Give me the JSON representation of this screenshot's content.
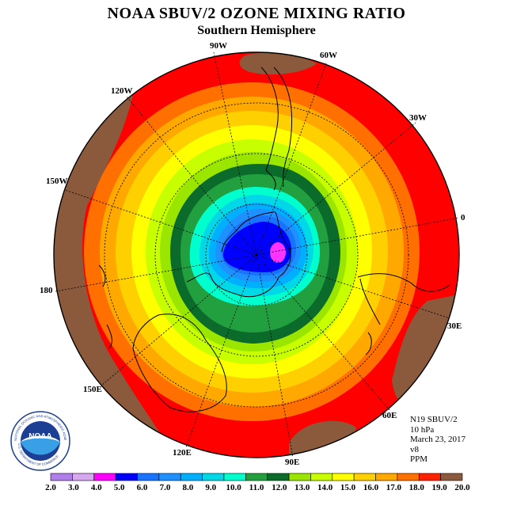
{
  "title": "NOAA SBUV/2 OZONE MIXING RATIO",
  "subtitle": "Southern Hemisphere",
  "longitude_labels": [
    "90W",
    "60W",
    "30W",
    "0",
    "30E",
    "60E",
    "90E",
    "120E",
    "150E",
    "180",
    "150W",
    "120W"
  ],
  "info": {
    "instrument": "N19 SBUV/2",
    "level": "10 hPa",
    "date": "March 23, 2017",
    "version": "v8",
    "units": "PPM"
  },
  "logo": {
    "text": "NOAA",
    "ring_text_top": "NATIONAL OCEANIC AND ATMOSPHERIC ADMINISTRATION",
    "ring_text_bottom": "U.S. DEPARTMENT OF COMMERCE"
  },
  "colorbar": {
    "labels": [
      "2.0",
      "3.0",
      "4.0",
      "5.0",
      "6.0",
      "7.0",
      "8.0",
      "9.0",
      "10.0",
      "11.0",
      "12.0",
      "13.0",
      "14.0",
      "15.0",
      "16.0",
      "17.0",
      "18.0",
      "19.0",
      "20.0"
    ],
    "colors": [
      "#b07ee8",
      "#d7a8f0",
      "#ff00ff",
      "#0000ff",
      "#1874ff",
      "#1e90ff",
      "#00b0ff",
      "#00d8e8",
      "#00ffcc",
      "#22a040",
      "#0a6b2a",
      "#9be600",
      "#c8ff00",
      "#ffff00",
      "#ffd000",
      "#ffa800",
      "#ff7000",
      "#ff2000",
      "#8b5a3c"
    ]
  },
  "colors": {
    "outer_ocean": "#ff0000",
    "high_region": "#8b5a3c",
    "min_core": "#ff33ff"
  }
}
